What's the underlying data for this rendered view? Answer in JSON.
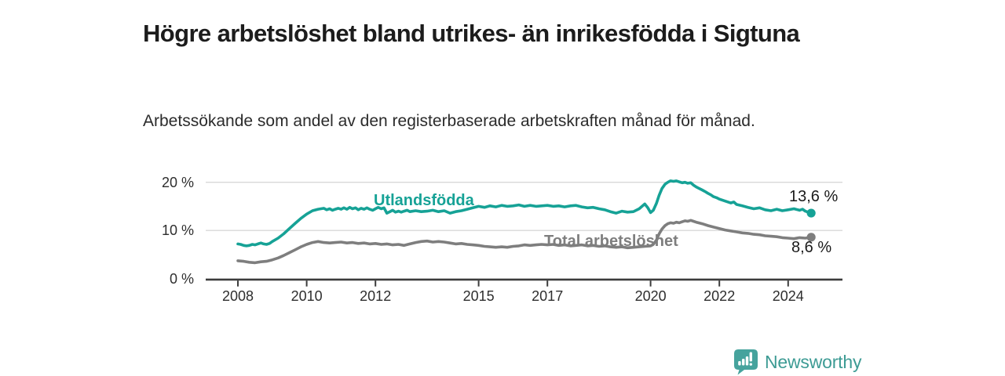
{
  "header": {
    "title": "Högre arbetslöshet bland utrikes- än inrikesfödda i Sigtuna",
    "subtitle": "Arbetssökande som andel av den registerbaserade arbetskraften månad för månad."
  },
  "colors": {
    "accent_teal": "#16a296",
    "line_gray": "#7e7e7e",
    "axis": "#3c3c3c",
    "gridline": "#d8d8d8",
    "brand_teal": "#3d9b94",
    "brand_icon_teal": "#46a39d"
  },
  "chart_data": {
    "type": "line",
    "title": "Högre arbetslöshet bland utrikes- än inrikesfödda i Sigtuna",
    "subtitle": "Arbetssökande som andel av den registerbaserade arbetskraften månad för månad.",
    "xlabel": "",
    "ylabel": "",
    "grid": "horizontal",
    "legend_position": "inline-labels",
    "xlim": [
      2007.0,
      2025.6
    ],
    "ylim": [
      0,
      22
    ],
    "x_ticks": [
      {
        "value": 2008,
        "label": "2008"
      },
      {
        "value": 2010,
        "label": "2010"
      },
      {
        "value": 2012,
        "label": "2012"
      },
      {
        "value": 2015,
        "label": "2015"
      },
      {
        "value": 2017,
        "label": "2017"
      },
      {
        "value": 2020,
        "label": "2020"
      },
      {
        "value": 2022,
        "label": "2022"
      },
      {
        "value": 2024,
        "label": "2024"
      }
    ],
    "y_ticks": [
      {
        "value": 0,
        "label": "0 %"
      },
      {
        "value": 10,
        "label": "10 %"
      },
      {
        "value": 20,
        "label": "20 %"
      }
    ],
    "series": [
      {
        "name": "Utlandsfödda",
        "color": "#16a296",
        "end_label": "13,6 %",
        "end_value": 13.6,
        "points": [
          [
            2008.0,
            7.2
          ],
          [
            2008.08,
            7.1
          ],
          [
            2008.17,
            6.9
          ],
          [
            2008.25,
            6.8
          ],
          [
            2008.33,
            6.9
          ],
          [
            2008.42,
            7.1
          ],
          [
            2008.5,
            7.0
          ],
          [
            2008.58,
            7.2
          ],
          [
            2008.67,
            7.4
          ],
          [
            2008.75,
            7.2
          ],
          [
            2008.83,
            7.1
          ],
          [
            2008.92,
            7.3
          ],
          [
            2009.0,
            7.7
          ],
          [
            2009.17,
            8.4
          ],
          [
            2009.33,
            9.3
          ],
          [
            2009.5,
            10.4
          ],
          [
            2009.67,
            11.5
          ],
          [
            2009.83,
            12.5
          ],
          [
            2010.0,
            13.4
          ],
          [
            2010.17,
            14.1
          ],
          [
            2010.33,
            14.4
          ],
          [
            2010.5,
            14.6
          ],
          [
            2010.58,
            14.3
          ],
          [
            2010.67,
            14.5
          ],
          [
            2010.75,
            14.2
          ],
          [
            2010.83,
            14.4
          ],
          [
            2010.92,
            14.6
          ],
          [
            2011.0,
            14.4
          ],
          [
            2011.08,
            14.7
          ],
          [
            2011.17,
            14.4
          ],
          [
            2011.25,
            14.8
          ],
          [
            2011.33,
            14.5
          ],
          [
            2011.42,
            14.7
          ],
          [
            2011.5,
            14.3
          ],
          [
            2011.58,
            14.6
          ],
          [
            2011.67,
            14.4
          ],
          [
            2011.75,
            14.7
          ],
          [
            2011.83,
            14.4
          ],
          [
            2011.92,
            14.2
          ],
          [
            2012.0,
            14.5
          ],
          [
            2012.08,
            14.8
          ],
          [
            2012.17,
            14.5
          ],
          [
            2012.25,
            14.7
          ],
          [
            2012.33,
            13.6
          ],
          [
            2012.42,
            13.9
          ],
          [
            2012.5,
            14.2
          ],
          [
            2012.58,
            13.8
          ],
          [
            2012.67,
            14.0
          ],
          [
            2012.75,
            13.8
          ],
          [
            2012.83,
            14.0
          ],
          [
            2012.92,
            14.2
          ],
          [
            2013.0,
            13.9
          ],
          [
            2013.17,
            14.1
          ],
          [
            2013.33,
            13.9
          ],
          [
            2013.5,
            14.0
          ],
          [
            2013.67,
            14.2
          ],
          [
            2013.83,
            13.9
          ],
          [
            2014.0,
            14.1
          ],
          [
            2014.17,
            13.6
          ],
          [
            2014.33,
            13.9
          ],
          [
            2014.5,
            14.1
          ],
          [
            2014.67,
            14.4
          ],
          [
            2014.83,
            14.7
          ],
          [
            2015.0,
            15.0
          ],
          [
            2015.17,
            14.8
          ],
          [
            2015.33,
            15.1
          ],
          [
            2015.5,
            14.9
          ],
          [
            2015.67,
            15.2
          ],
          [
            2015.83,
            15.0
          ],
          [
            2016.0,
            15.1
          ],
          [
            2016.17,
            15.3
          ],
          [
            2016.33,
            15.0
          ],
          [
            2016.5,
            15.2
          ],
          [
            2016.67,
            15.0
          ],
          [
            2016.83,
            15.1
          ],
          [
            2017.0,
            15.2
          ],
          [
            2017.17,
            15.0
          ],
          [
            2017.33,
            15.1
          ],
          [
            2017.5,
            14.9
          ],
          [
            2017.67,
            15.1
          ],
          [
            2017.83,
            15.2
          ],
          [
            2018.0,
            14.9
          ],
          [
            2018.17,
            14.7
          ],
          [
            2018.33,
            14.8
          ],
          [
            2018.5,
            14.5
          ],
          [
            2018.67,
            14.3
          ],
          [
            2018.83,
            13.9
          ],
          [
            2019.0,
            13.6
          ],
          [
            2019.17,
            14.0
          ],
          [
            2019.33,
            13.8
          ],
          [
            2019.5,
            13.9
          ],
          [
            2019.67,
            14.5
          ],
          [
            2019.83,
            15.5
          ],
          [
            2019.92,
            14.7
          ],
          [
            2020.0,
            13.7
          ],
          [
            2020.08,
            14.2
          ],
          [
            2020.17,
            15.6
          ],
          [
            2020.25,
            17.3
          ],
          [
            2020.33,
            18.7
          ],
          [
            2020.42,
            19.6
          ],
          [
            2020.5,
            20.0
          ],
          [
            2020.58,
            20.3
          ],
          [
            2020.67,
            20.2
          ],
          [
            2020.75,
            20.3
          ],
          [
            2020.83,
            20.1
          ],
          [
            2020.92,
            19.9
          ],
          [
            2021.0,
            20.0
          ],
          [
            2021.08,
            19.8
          ],
          [
            2021.17,
            19.9
          ],
          [
            2021.25,
            19.4
          ],
          [
            2021.33,
            19.0
          ],
          [
            2021.42,
            18.7
          ],
          [
            2021.5,
            18.4
          ],
          [
            2021.58,
            18.1
          ],
          [
            2021.67,
            17.7
          ],
          [
            2021.75,
            17.4
          ],
          [
            2021.83,
            17.0
          ],
          [
            2021.92,
            16.8
          ],
          [
            2022.0,
            16.5
          ],
          [
            2022.17,
            16.1
          ],
          [
            2022.33,
            15.7
          ],
          [
            2022.42,
            15.9
          ],
          [
            2022.5,
            15.4
          ],
          [
            2022.67,
            15.1
          ],
          [
            2022.83,
            14.8
          ],
          [
            2023.0,
            14.5
          ],
          [
            2023.17,
            14.7
          ],
          [
            2023.33,
            14.3
          ],
          [
            2023.5,
            14.1
          ],
          [
            2023.67,
            14.4
          ],
          [
            2023.83,
            14.1
          ],
          [
            2024.0,
            14.3
          ],
          [
            2024.17,
            14.5
          ],
          [
            2024.33,
            14.2
          ],
          [
            2024.42,
            14.4
          ],
          [
            2024.5,
            14.0
          ],
          [
            2024.58,
            13.8
          ],
          [
            2024.67,
            13.6
          ]
        ]
      },
      {
        "name": "Total arbetslöshet",
        "color": "#7e7e7e",
        "end_label": "8,6 %",
        "end_value": 8.6,
        "points": [
          [
            2008.0,
            3.7
          ],
          [
            2008.17,
            3.6
          ],
          [
            2008.33,
            3.4
          ],
          [
            2008.5,
            3.3
          ],
          [
            2008.67,
            3.5
          ],
          [
            2008.83,
            3.6
          ],
          [
            2009.0,
            3.9
          ],
          [
            2009.17,
            4.3
          ],
          [
            2009.33,
            4.8
          ],
          [
            2009.5,
            5.4
          ],
          [
            2009.67,
            6.0
          ],
          [
            2009.83,
            6.6
          ],
          [
            2010.0,
            7.1
          ],
          [
            2010.17,
            7.5
          ],
          [
            2010.33,
            7.7
          ],
          [
            2010.5,
            7.5
          ],
          [
            2010.67,
            7.4
          ],
          [
            2010.83,
            7.5
          ],
          [
            2011.0,
            7.6
          ],
          [
            2011.17,
            7.4
          ],
          [
            2011.33,
            7.5
          ],
          [
            2011.5,
            7.3
          ],
          [
            2011.67,
            7.4
          ],
          [
            2011.83,
            7.2
          ],
          [
            2012.0,
            7.3
          ],
          [
            2012.17,
            7.1
          ],
          [
            2012.33,
            7.2
          ],
          [
            2012.5,
            7.0
          ],
          [
            2012.67,
            7.1
          ],
          [
            2012.83,
            6.9
          ],
          [
            2013.0,
            7.2
          ],
          [
            2013.17,
            7.5
          ],
          [
            2013.33,
            7.7
          ],
          [
            2013.5,
            7.8
          ],
          [
            2013.67,
            7.6
          ],
          [
            2013.83,
            7.7
          ],
          [
            2014.0,
            7.6
          ],
          [
            2014.17,
            7.4
          ],
          [
            2014.33,
            7.2
          ],
          [
            2014.5,
            7.3
          ],
          [
            2014.67,
            7.1
          ],
          [
            2014.83,
            7.0
          ],
          [
            2015.0,
            6.9
          ],
          [
            2015.17,
            6.7
          ],
          [
            2015.33,
            6.6
          ],
          [
            2015.5,
            6.5
          ],
          [
            2015.67,
            6.6
          ],
          [
            2015.83,
            6.5
          ],
          [
            2016.0,
            6.7
          ],
          [
            2016.17,
            6.8
          ],
          [
            2016.33,
            7.0
          ],
          [
            2016.5,
            6.9
          ],
          [
            2016.67,
            7.0
          ],
          [
            2016.83,
            7.1
          ],
          [
            2017.0,
            7.0
          ],
          [
            2017.17,
            7.1
          ],
          [
            2017.33,
            6.9
          ],
          [
            2017.5,
            7.0
          ],
          [
            2017.67,
            6.8
          ],
          [
            2017.83,
            6.9
          ],
          [
            2018.0,
            7.0
          ],
          [
            2018.17,
            6.8
          ],
          [
            2018.33,
            6.9
          ],
          [
            2018.5,
            6.7
          ],
          [
            2018.67,
            6.8
          ],
          [
            2018.83,
            6.6
          ],
          [
            2019.0,
            6.5
          ],
          [
            2019.17,
            6.6
          ],
          [
            2019.33,
            6.4
          ],
          [
            2019.5,
            6.5
          ],
          [
            2019.67,
            6.6
          ],
          [
            2019.83,
            6.7
          ],
          [
            2020.0,
            6.8
          ],
          [
            2020.08,
            7.1
          ],
          [
            2020.17,
            8.0
          ],
          [
            2020.25,
            9.3
          ],
          [
            2020.33,
            10.3
          ],
          [
            2020.42,
            11.0
          ],
          [
            2020.5,
            11.4
          ],
          [
            2020.58,
            11.6
          ],
          [
            2020.67,
            11.5
          ],
          [
            2020.75,
            11.7
          ],
          [
            2020.83,
            11.6
          ],
          [
            2020.92,
            11.8
          ],
          [
            2021.0,
            12.0
          ],
          [
            2021.08,
            11.9
          ],
          [
            2021.17,
            12.1
          ],
          [
            2021.25,
            11.9
          ],
          [
            2021.33,
            11.7
          ],
          [
            2021.5,
            11.4
          ],
          [
            2021.67,
            11.0
          ],
          [
            2021.83,
            10.7
          ],
          [
            2022.0,
            10.4
          ],
          [
            2022.17,
            10.1
          ],
          [
            2022.33,
            9.9
          ],
          [
            2022.5,
            9.7
          ],
          [
            2022.67,
            9.5
          ],
          [
            2022.83,
            9.4
          ],
          [
            2023.0,
            9.2
          ],
          [
            2023.17,
            9.1
          ],
          [
            2023.33,
            8.9
          ],
          [
            2023.5,
            8.8
          ],
          [
            2023.67,
            8.7
          ],
          [
            2023.83,
            8.5
          ],
          [
            2024.0,
            8.4
          ],
          [
            2024.17,
            8.3
          ],
          [
            2024.33,
            8.5
          ],
          [
            2024.5,
            8.4
          ],
          [
            2024.67,
            8.6
          ]
        ]
      }
    ]
  },
  "footer": {
    "brand": "Newsworthy",
    "brand_icon": "newsworthy-chart-bubble-icon"
  }
}
